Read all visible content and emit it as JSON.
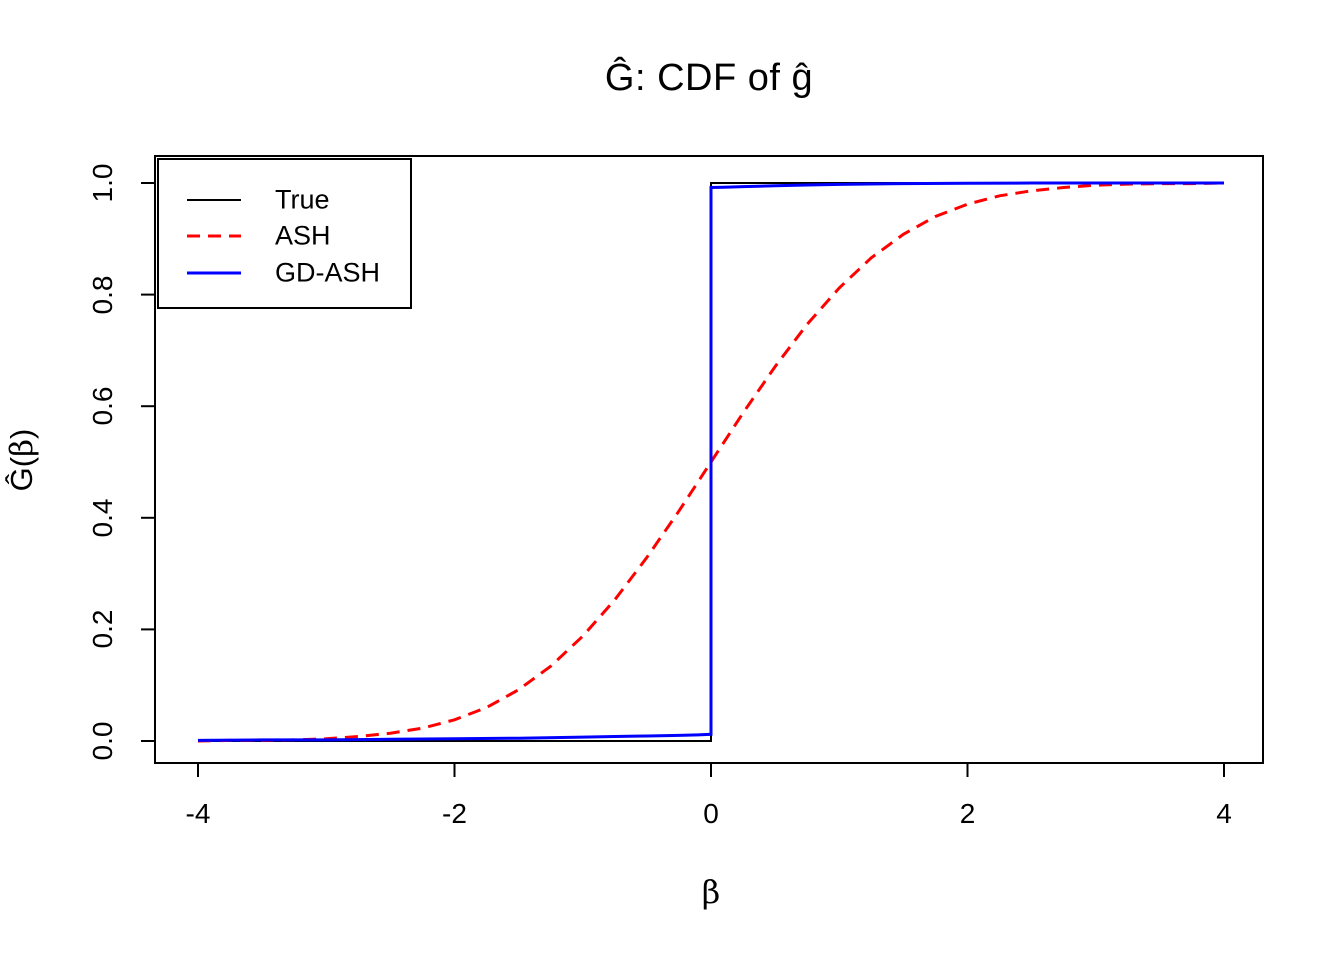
{
  "page": {
    "background": "#ffffff",
    "foreground": "#000000"
  },
  "chart_data": {
    "type": "line",
    "title": "Ĝ: CDF of ĝ",
    "xlabel": "β",
    "ylabel": "Ĝ(β)",
    "ylabel_parts": {
      "pre": "Ĝ(",
      "var": "β",
      "post": ")"
    },
    "xlim": [
      -4.3,
      4.3
    ],
    "ylim": [
      -0.04,
      1.04
    ],
    "x_tick_labels": [
      "-4",
      "-2",
      "0",
      "2",
      "4"
    ],
    "x_tick_values": [
      -4,
      -2,
      0,
      2,
      4
    ],
    "y_tick_labels": [
      "0.0",
      "0.2",
      "0.4",
      "0.6",
      "0.8",
      "1.0"
    ],
    "y_tick_values": [
      0,
      0.2,
      0.4,
      0.6,
      0.8,
      1.0
    ],
    "grid": false,
    "legend": {
      "position": "topleft",
      "entries": [
        {
          "label": "True",
          "color": "#000000",
          "linestyle": "solid",
          "linewidth": 2
        },
        {
          "label": "ASH",
          "color": "#ff0000",
          "linestyle": "dashed",
          "linewidth": 3
        },
        {
          "label": "GD-ASH",
          "color": "#0000ff",
          "linestyle": "solid",
          "linewidth": 3
        }
      ]
    },
    "series": [
      {
        "name": "True",
        "color": "#000000",
        "linestyle": "solid",
        "linewidth": 2,
        "points": [
          [
            -4,
            0
          ],
          [
            0,
            0
          ],
          [
            0,
            1
          ],
          [
            4,
            1
          ]
        ]
      },
      {
        "name": "ASH",
        "color": "#ff0000",
        "linestyle": "dashed",
        "linewidth": 3,
        "points": [
          [
            -4,
            0.0
          ],
          [
            -3.75,
            0.001
          ],
          [
            -3.5,
            0.001
          ],
          [
            -3.25,
            0.002
          ],
          [
            -3,
            0.004
          ],
          [
            -2.75,
            0.008
          ],
          [
            -2.5,
            0.014
          ],
          [
            -2.25,
            0.023
          ],
          [
            -2,
            0.038
          ],
          [
            -1.75,
            0.06
          ],
          [
            -1.5,
            0.092
          ],
          [
            -1.25,
            0.134
          ],
          [
            -1,
            0.188
          ],
          [
            -0.75,
            0.253
          ],
          [
            -0.5,
            0.329
          ],
          [
            -0.25,
            0.412
          ],
          [
            0,
            0.5
          ],
          [
            0.25,
            0.588
          ],
          [
            0.5,
            0.671
          ],
          [
            0.75,
            0.747
          ],
          [
            1,
            0.812
          ],
          [
            1.25,
            0.866
          ],
          [
            1.5,
            0.908
          ],
          [
            1.75,
            0.94
          ],
          [
            2,
            0.962
          ],
          [
            2.25,
            0.977
          ],
          [
            2.5,
            0.986
          ],
          [
            2.75,
            0.992
          ],
          [
            3,
            0.996
          ],
          [
            3.25,
            0.998
          ],
          [
            3.5,
            0.999
          ],
          [
            3.75,
            0.999
          ],
          [
            4,
            1.0
          ]
        ]
      },
      {
        "name": "GD-ASH",
        "color": "#0000ff",
        "linestyle": "solid",
        "linewidth": 3,
        "points": [
          [
            -4,
            0.001
          ],
          [
            -3.5,
            0.002
          ],
          [
            -3,
            0.002
          ],
          [
            -2.5,
            0.003
          ],
          [
            -2,
            0.004
          ],
          [
            -1.5,
            0.005
          ],
          [
            -1,
            0.007
          ],
          [
            -0.75,
            0.008
          ],
          [
            -0.5,
            0.009
          ],
          [
            -0.25,
            0.01
          ],
          [
            -0.1,
            0.011
          ],
          [
            0,
            0.012
          ],
          [
            0,
            0.992
          ],
          [
            0.1,
            0.9925
          ],
          [
            0.25,
            0.9935
          ],
          [
            0.5,
            0.995
          ],
          [
            0.75,
            0.9965
          ],
          [
            1,
            0.9975
          ],
          [
            1.5,
            0.999
          ],
          [
            2,
            0.9995
          ],
          [
            2.5,
            1.0
          ],
          [
            3,
            1.0
          ],
          [
            4,
            1.0
          ]
        ]
      }
    ]
  }
}
